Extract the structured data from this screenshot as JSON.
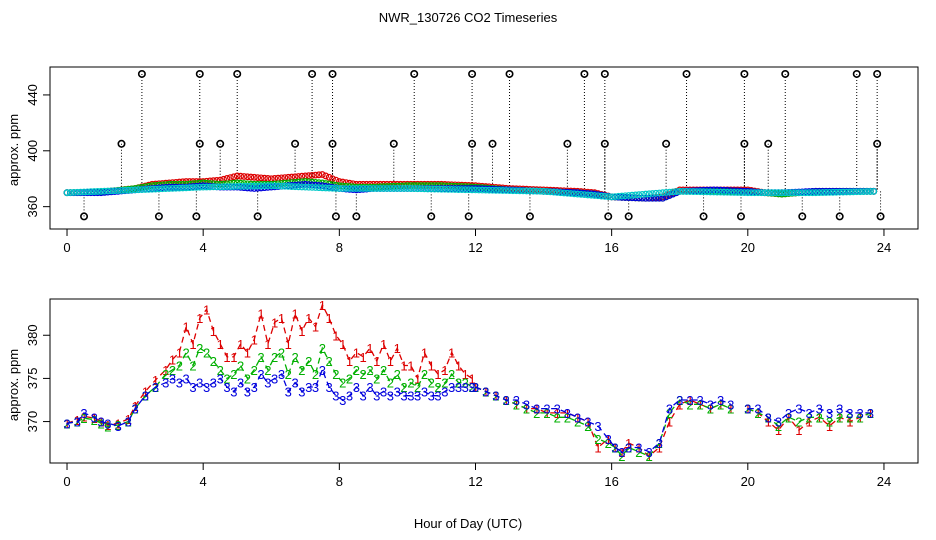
{
  "chart_data": [
    {
      "type": "scatter",
      "title": "NWR_130726  CO2 Timeseries",
      "xlabel": "",
      "ylabel": "approx. ppm",
      "xlim": [
        -0.5,
        25
      ],
      "ylim": [
        344,
        460
      ],
      "xticks": [
        0,
        4,
        8,
        12,
        16,
        20,
        24
      ],
      "yticks": [
        360,
        400,
        440
      ],
      "extreme_markers": {
        "high_hours": [
          2.2,
          3.9,
          5.0,
          7.2,
          7.8,
          10.2,
          11.9,
          13.0,
          15.2,
          15.8,
          18.2,
          19.9,
          21.1,
          23.2,
          23.8
        ],
        "high_value": 455,
        "mid_hours": [
          1.6,
          3.9,
          4.5,
          6.7,
          7.8,
          9.6,
          11.9,
          12.5,
          14.7,
          15.8,
          17.6,
          19.9,
          20.6,
          23.8
        ],
        "mid_value": 405,
        "low_hours": [
          0.5,
          2.7,
          3.8,
          5.6,
          7.9,
          8.5,
          10.7,
          11.8,
          13.6,
          15.9,
          16.5,
          18.7,
          19.8,
          21.6,
          22.7,
          23.9
        ],
        "low_value": 353
      },
      "series": [
        {
          "name": "red",
          "marker": "o",
          "color": "#dd0000",
          "x": [
            0,
            1,
            2,
            2.5,
            3,
            3.5,
            4,
            4.5,
            5,
            5.5,
            6,
            6.5,
            7,
            7.5,
            8,
            8.5,
            9,
            10,
            11,
            12,
            13,
            14,
            15,
            15.5,
            16,
            17,
            17.5,
            18,
            19,
            20,
            20.5,
            21,
            22,
            23,
            23.8
          ],
          "y": [
            370,
            370.5,
            373,
            376,
            377,
            378,
            378,
            379,
            382,
            381,
            380,
            381,
            382,
            383,
            378,
            376,
            376,
            376,
            376,
            375,
            373,
            372,
            371,
            370,
            367,
            366,
            367,
            372,
            372,
            372,
            370,
            369,
            371,
            371,
            371
          ]
        },
        {
          "name": "green",
          "marker": "o",
          "color": "#00b000",
          "x": [
            0,
            1,
            2,
            2.5,
            3,
            3.5,
            4,
            4.5,
            5,
            5.5,
            6,
            6.5,
            7,
            7.5,
            8,
            8.5,
            9,
            10,
            11,
            12,
            13,
            14,
            15,
            15.5,
            16,
            17,
            17.5,
            18,
            19,
            20,
            20.5,
            21,
            22,
            23,
            23.8
          ],
          "y": [
            370,
            370.3,
            373,
            375,
            376,
            376,
            377,
            376,
            377,
            376,
            376,
            377,
            378,
            377,
            375,
            374,
            374,
            375,
            375,
            374,
            372,
            371,
            370,
            369,
            367,
            366,
            366,
            371,
            371,
            371,
            370,
            369,
            371,
            371,
            371
          ]
        },
        {
          "name": "blue",
          "marker": "o",
          "color": "#0000dd",
          "x": [
            0,
            1,
            2,
            2.5,
            3,
            3.5,
            4,
            4.5,
            5,
            5.5,
            6,
            6.5,
            7,
            7.5,
            8,
            8.5,
            9,
            10,
            11,
            12,
            13,
            14,
            15,
            15.5,
            16,
            17,
            17.5,
            18,
            19,
            20,
            20.5,
            21,
            22,
            23,
            23.8
          ],
          "y": [
            370,
            370,
            372,
            373,
            374,
            374,
            375,
            374,
            374,
            373,
            374,
            375,
            376,
            375,
            373,
            372,
            373,
            373,
            373,
            373,
            372,
            371,
            370,
            369,
            367,
            366,
            366,
            371,
            372,
            371,
            370,
            370,
            371,
            371,
            371
          ]
        },
        {
          "name": "cyan",
          "marker": "o",
          "color": "#00c8c8",
          "x": [
            0,
            2,
            4,
            6,
            8,
            10,
            12,
            14,
            16,
            18,
            20,
            22,
            23.8
          ],
          "y": [
            370,
            372,
            374,
            375,
            373,
            373,
            372,
            371,
            367,
            371,
            370,
            370,
            371
          ]
        }
      ]
    },
    {
      "type": "line",
      "title": "",
      "xlabel": "Hour of Day (UTC)",
      "ylabel": "approx. ppm",
      "xlim": [
        -0.5,
        25
      ],
      "ylim": [
        365.2,
        384.2
      ],
      "xticks": [
        0,
        4,
        8,
        12,
        16,
        20,
        24
      ],
      "yticks": [
        370,
        375,
        380
      ],
      "series": [
        {
          "name": "1",
          "label_char": "1",
          "color": "#dd0000",
          "x": [
            0,
            0.3,
            0.5,
            0.8,
            1.0,
            1.2,
            1.5,
            1.8,
            2.0,
            2.3,
            2.6,
            2.9,
            3.1,
            3.3,
            3.5,
            3.7,
            3.9,
            4.1,
            4.3,
            4.5,
            4.7,
            4.9,
            5.1,
            5.3,
            5.5,
            5.7,
            5.9,
            6.1,
            6.3,
            6.5,
            6.7,
            6.9,
            7.1,
            7.3,
            7.5,
            7.7,
            7.9,
            8.1,
            8.3,
            8.5,
            8.7,
            8.9,
            9.1,
            9.3,
            9.5,
            9.7,
            9.9,
            10.1,
            10.3,
            10.5,
            10.7,
            10.9,
            11.1,
            11.3,
            11.5,
            11.7,
            11.9
          ],
          "y": [
            369.8,
            370.2,
            370.6,
            370.4,
            370.0,
            369.6,
            369.8,
            370.3,
            371.8,
            373.5,
            374.8,
            376.0,
            377.2,
            378.0,
            381.0,
            379.0,
            382.0,
            383.0,
            380.5,
            379.0,
            377.5,
            377.5,
            379.0,
            378.0,
            379.5,
            382.5,
            379.0,
            381.5,
            382.0,
            379.0,
            382.5,
            380.5,
            382.0,
            381.0,
            383.5,
            382.0,
            380.0,
            379.0,
            377.0,
            378.0,
            377.5,
            378.5,
            377.0,
            379.0,
            377.0,
            378.5,
            376.5,
            376.5,
            375.0,
            378.0,
            376.5,
            375.5,
            376.0,
            378.0,
            376.5,
            375.5,
            375.0
          ]
        },
        {
          "name": "2",
          "label_char": "2",
          "color": "#00b000",
          "x": [
            0,
            0.3,
            0.5,
            0.8,
            1.0,
            1.2,
            1.5,
            1.8,
            2.0,
            2.3,
            2.6,
            2.9,
            3.1,
            3.3,
            3.5,
            3.7,
            3.9,
            4.1,
            4.3,
            4.5,
            4.7,
            4.9,
            5.1,
            5.3,
            5.5,
            5.7,
            5.9,
            6.1,
            6.3,
            6.5,
            6.7,
            6.9,
            7.1,
            7.3,
            7.5,
            7.7,
            7.9,
            8.1,
            8.3,
            8.5,
            8.7,
            8.9,
            9.1,
            9.3,
            9.5,
            9.7,
            9.9,
            10.1,
            10.3,
            10.5,
            10.7,
            10.9,
            11.1,
            11.3,
            11.5,
            11.7,
            11.9
          ],
          "y": [
            369.8,
            370.0,
            370.4,
            370.2,
            369.8,
            369.4,
            369.6,
            370.0,
            371.5,
            373.0,
            374.0,
            375.5,
            376.0,
            376.5,
            378.0,
            376.5,
            378.5,
            378.0,
            377.0,
            376.0,
            375.0,
            375.5,
            376.5,
            375.0,
            376.0,
            377.5,
            376.0,
            377.5,
            378.0,
            375.5,
            377.5,
            376.0,
            377.0,
            375.5,
            378.5,
            377.0,
            375.5,
            374.5,
            375.0,
            376.0,
            375.5,
            376.0,
            375.0,
            376.0,
            374.5,
            375.5,
            374.0,
            374.5,
            374.0,
            375.5,
            374.5,
            374.0,
            374.5,
            375.5,
            374.5,
            374.5,
            374.0
          ]
        },
        {
          "name": "3",
          "label_char": "3",
          "color": "#0000dd",
          "x": [
            0,
            0.3,
            0.5,
            0.8,
            1.0,
            1.2,
            1.5,
            1.8,
            2.0,
            2.3,
            2.6,
            2.9,
            3.1,
            3.3,
            3.5,
            3.7,
            3.9,
            4.1,
            4.3,
            4.5,
            4.7,
            4.9,
            5.1,
            5.3,
            5.5,
            5.7,
            5.9,
            6.1,
            6.3,
            6.5,
            6.7,
            6.9,
            7.1,
            7.3,
            7.5,
            7.7,
            7.9,
            8.1,
            8.3,
            8.5,
            8.7,
            8.9,
            9.1,
            9.3,
            9.5,
            9.7,
            9.9,
            10.1,
            10.3,
            10.5,
            10.7,
            10.9,
            11.1,
            11.3,
            11.5,
            11.7,
            11.9
          ],
          "y": [
            369.8,
            370.0,
            371.0,
            370.5,
            370.0,
            369.8,
            369.5,
            370.0,
            371.5,
            373.0,
            374.0,
            374.5,
            375.0,
            374.5,
            375.0,
            374.0,
            374.5,
            374.0,
            374.5,
            375.0,
            374.0,
            373.5,
            374.5,
            373.5,
            374.0,
            375.5,
            374.5,
            375.0,
            375.5,
            373.5,
            374.5,
            373.5,
            374.0,
            374.0,
            376.0,
            374.0,
            373.0,
            372.5,
            373.0,
            374.0,
            373.0,
            374.0,
            373.0,
            373.5,
            373.0,
            373.5,
            373.0,
            373.0,
            373.0,
            373.5,
            373.0,
            373.0,
            373.5,
            374.0,
            374.0,
            374.0,
            374.0
          ]
        },
        {
          "name": "1",
          "label_char": "1",
          "color": "#dd0000",
          "x": [
            12.0,
            12.3,
            12.6,
            12.9,
            13.2,
            13.5,
            13.8,
            14.1,
            14.4,
            14.7,
            15.0,
            15.3,
            15.6,
            15.9,
            16.1,
            16.3,
            16.5,
            16.8,
            17.1,
            17.4,
            17.7,
            18.0,
            18.3,
            18.6,
            18.9,
            19.2,
            19.5
          ],
          "y": [
            374.0,
            373.5,
            373.0,
            372.5,
            372.0,
            371.5,
            371.5,
            371.0,
            371.0,
            371.0,
            370.5,
            370.0,
            367.0,
            368.0,
            367.0,
            366.5,
            367.5,
            367.0,
            366.0,
            367.0,
            370.0,
            372.0,
            372.5,
            372.0,
            371.5,
            372.0,
            371.5
          ]
        },
        {
          "name": "2",
          "label_char": "2",
          "color": "#00b000",
          "x": [
            12.0,
            12.3,
            12.6,
            12.9,
            13.2,
            13.5,
            13.8,
            14.1,
            14.4,
            14.7,
            15.0,
            15.3,
            15.6,
            15.9,
            16.1,
            16.3,
            16.5,
            16.8,
            17.1,
            17.4,
            17.7,
            18.0,
            18.3,
            18.6,
            18.9,
            19.2,
            19.5
          ],
          "y": [
            374.0,
            373.5,
            373.0,
            372.5,
            372.0,
            371.5,
            371.0,
            371.0,
            370.5,
            370.5,
            370.0,
            369.5,
            368.0,
            367.5,
            367.0,
            366.0,
            367.0,
            366.5,
            366.0,
            367.5,
            371.0,
            372.5,
            372.0,
            372.0,
            371.5,
            372.0,
            371.5
          ]
        },
        {
          "name": "3",
          "label_char": "3",
          "color": "#0000dd",
          "x": [
            12.0,
            12.3,
            12.6,
            12.9,
            13.2,
            13.5,
            13.8,
            14.1,
            14.4,
            14.7,
            15.0,
            15.3,
            15.6,
            15.9,
            16.1,
            16.3,
            16.5,
            16.8,
            17.1,
            17.4,
            17.7,
            18.0,
            18.3,
            18.6,
            18.9,
            19.2,
            19.5
          ],
          "y": [
            374.0,
            373.5,
            373.0,
            372.5,
            372.5,
            372.0,
            371.5,
            371.5,
            371.5,
            371.0,
            370.5,
            370.0,
            369.5,
            368.0,
            367.0,
            366.5,
            367.0,
            367.0,
            366.5,
            367.5,
            371.5,
            372.5,
            372.5,
            372.5,
            372.0,
            372.5,
            372.0
          ]
        },
        {
          "name": "1",
          "label_char": "1",
          "color": "#dd0000",
          "x": [
            20.0,
            20.3,
            20.6,
            20.9,
            21.2,
            21.5,
            21.8,
            22.1,
            22.4,
            22.7,
            23.0,
            23.3,
            23.6
          ],
          "y": [
            371.5,
            371.0,
            370.0,
            369.0,
            370.5,
            369.0,
            370.0,
            370.5,
            369.5,
            370.5,
            370.0,
            370.5,
            371.0
          ]
        },
        {
          "name": "2",
          "label_char": "2",
          "color": "#00b000",
          "x": [
            20.0,
            20.3,
            20.6,
            20.9,
            21.2,
            21.5,
            21.8,
            22.1,
            22.4,
            22.7,
            23.0,
            23.3,
            23.6
          ],
          "y": [
            371.5,
            371.0,
            370.5,
            369.5,
            370.5,
            370.0,
            370.5,
            370.5,
            370.0,
            370.5,
            370.5,
            370.5,
            371.0
          ]
        },
        {
          "name": "3",
          "label_char": "3",
          "color": "#0000dd",
          "x": [
            20.0,
            20.3,
            20.6,
            20.9,
            21.2,
            21.5,
            21.8,
            22.1,
            22.4,
            22.7,
            23.0,
            23.3,
            23.6
          ],
          "y": [
            371.5,
            371.5,
            370.5,
            370.0,
            371.0,
            371.5,
            371.0,
            371.5,
            371.0,
            371.5,
            371.0,
            371.0,
            371.0
          ]
        }
      ]
    }
  ]
}
